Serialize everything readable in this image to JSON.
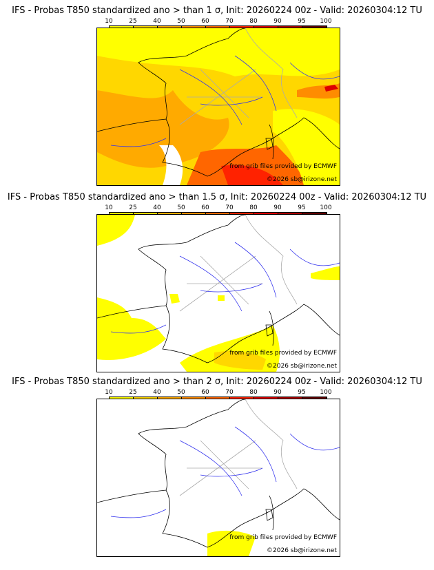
{
  "panels": [
    {
      "title": "IFS - Probas T850  standardized ano > than 1 σ, Init: 20260224 00z - Valid: 20260304:12 TU",
      "level": "high"
    },
    {
      "title": "IFS - Probas T850  standardized ano > than 1.5 σ, Init: 20260224 00z - Valid: 20260304:12 TU",
      "level": "mid"
    },
    {
      "title": "IFS - Probas T850  standardized ano > than 2 σ, Init: 20260224 00z - Valid: 20260304:12 TU",
      "level": "low"
    }
  ],
  "colorbar": {
    "ticks": [
      "10",
      "25",
      "40",
      "50",
      "60",
      "70",
      "80",
      "90",
      "95",
      "100"
    ],
    "colors": [
      "#ffff00",
      "#ffd700",
      "#ffaa00",
      "#ff8c00",
      "#ff6600",
      "#ff2200",
      "#dd0000",
      "#aa0000",
      "#600000"
    ]
  },
  "credits": {
    "source": "from grib files provided by ECMWF",
    "copyright": "©2026 sb@irizone.net"
  }
}
